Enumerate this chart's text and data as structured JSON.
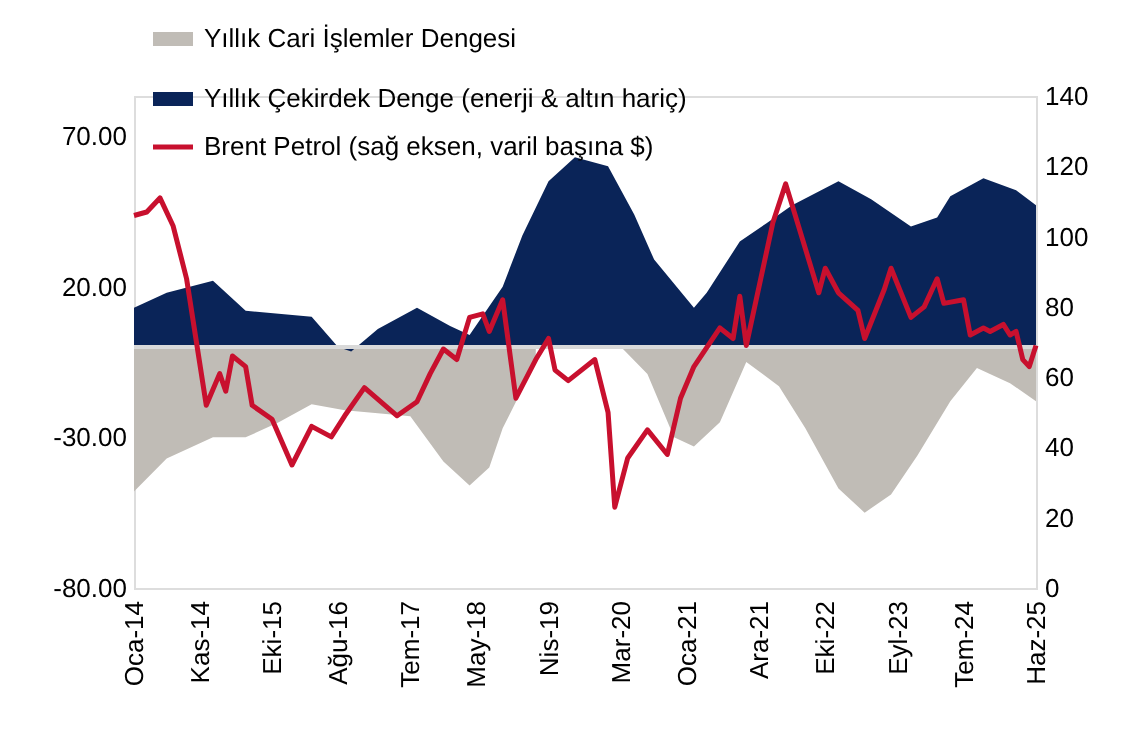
{
  "chart_data": {
    "type": "area",
    "legend": "top left",
    "grid": false,
    "xlim": [
      "2014-01",
      "2025-06"
    ],
    "xticks": [
      {
        "value": "2014-01",
        "label": "Oca-14"
      },
      {
        "value": "2014-11",
        "label": "Kas-14"
      },
      {
        "value": "2015-10",
        "label": "Eki-15"
      },
      {
        "value": "2016-08",
        "label": "Ağu-16"
      },
      {
        "value": "2017-07",
        "label": "Tem-17"
      },
      {
        "value": "2018-05",
        "label": "May-18"
      },
      {
        "value": "2019-04",
        "label": "Nis-19"
      },
      {
        "value": "2020-03",
        "label": "Mar-20"
      },
      {
        "value": "2021-01",
        "label": "Oca-21"
      },
      {
        "value": "2021-12",
        "label": "Ara-21"
      },
      {
        "value": "2022-10",
        "label": "Eki-22"
      },
      {
        "value": "2023-09",
        "label": "Eyl-23"
      },
      {
        "value": "2024-07",
        "label": "Tem-24"
      },
      {
        "value": "2025-06",
        "label": "Haz-25"
      }
    ],
    "ylim": [
      -80,
      83.3
    ],
    "yticks": [
      {
        "value": -80,
        "label": "-80.00"
      },
      {
        "value": -30,
        "label": "-30.00"
      },
      {
        "value": 20,
        "label": "20.00"
      },
      {
        "value": 70,
        "label": "70.00"
      }
    ],
    "y2lim": [
      0,
      140
    ],
    "y2ticks": [
      0,
      20,
      40,
      60,
      80,
      100,
      120,
      140
    ],
    "ref_lines": [
      {
        "axis": "y",
        "value": 0,
        "color": "#d9d9d9"
      }
    ],
    "series": [
      {
        "name": "Yıllık Cari İşlemler Dengesi",
        "color": "#c0bcb6",
        "x": [
          "2014-01",
          "2014-06",
          "2015-01",
          "2015-06",
          "2015-11",
          "2016-04",
          "2016-09",
          "2017-02",
          "2017-07",
          "2017-12",
          "2018-04",
          "2018-07",
          "2018-09",
          "2019-02",
          "2019-06",
          "2019-11",
          "2020-03",
          "2020-07",
          "2020-11",
          "2021-02",
          "2021-06",
          "2021-10",
          "2022-03",
          "2022-07",
          "2022-12",
          "2023-04",
          "2023-08",
          "2023-12",
          "2024-05",
          "2024-09",
          "2025-02",
          "2025-06"
        ],
        "values": [
          -48,
          -37,
          -30,
          -30,
          -25,
          -19,
          -21,
          -22,
          -23,
          -38,
          -46,
          -40,
          -27,
          -5,
          null,
          null,
          0,
          -9,
          -30,
          -33,
          -25,
          -5,
          -13,
          -27,
          -47,
          -55,
          -49,
          -36,
          -18,
          -7,
          -12,
          -18
        ]
      },
      {
        "name": "Yıllık Çekirdek Denge (enerji & altın hariç)",
        "color": "#0a2458",
        "x": [
          "2014-01",
          "2014-06",
          "2015-01",
          "2015-06",
          "2016-04",
          "2016-08",
          "2016-10",
          "2017-02",
          "2017-08",
          "2018-01",
          "2018-04",
          "2018-09",
          "2018-12",
          "2019-04",
          "2019-08",
          "2020-01",
          "2020-05",
          "2020-08",
          "2021-02",
          "2021-04",
          "2021-09",
          "2022-01",
          "2022-05",
          "2022-12",
          "2023-05",
          "2023-11",
          "2024-03",
          "2024-05",
          "2024-10",
          "2025-03",
          "2025-06"
        ],
        "values": [
          13,
          18,
          22,
          12,
          10,
          0,
          -1.5,
          6,
          13,
          7,
          4,
          20,
          37,
          55,
          63,
          60,
          44,
          29,
          13,
          18,
          35,
          41,
          47,
          55,
          49,
          40,
          43,
          50,
          56,
          52,
          47
        ]
      },
      {
        "name": "Brent Petrol (sağ eksen, varil başına $)",
        "type": "line",
        "line_style": "solid",
        "axis": "y2",
        "color": "#c8102e",
        "x": [
          "2014-01",
          "2014-03",
          "2014-05",
          "2014-07",
          "2014-09",
          "2014-12",
          "2015-02",
          "2015-03",
          "2015-04",
          "2015-06",
          "2015-07",
          "2015-10",
          "2016-01",
          "2016-04",
          "2016-07",
          "2016-09",
          "2016-12",
          "2017-05",
          "2017-08",
          "2017-10",
          "2017-12",
          "2018-02",
          "2018-04",
          "2018-06",
          "2018-07",
          "2018-09",
          "2018-11",
          "2019-02",
          "2019-04",
          "2019-05",
          "2019-07",
          "2019-11",
          "2020-01",
          "2020-02",
          "2020-04",
          "2020-07",
          "2020-10",
          "2020-12",
          "2021-02",
          "2021-06",
          "2021-08",
          "2021-09",
          "2021-10",
          "2022-02",
          "2022-04",
          "2022-09",
          "2022-10",
          "2022-12",
          "2023-03",
          "2023-04",
          "2023-07",
          "2023-08",
          "2023-11",
          "2024-01",
          "2024-03",
          "2024-04",
          "2024-07",
          "2024-08",
          "2024-10",
          "2024-11",
          "2025-01",
          "2025-02",
          "2025-03",
          "2025-04",
          "2025-05",
          "2025-06"
        ],
        "values": [
          106,
          107,
          111,
          103,
          88,
          52,
          61,
          56,
          66,
          63,
          52,
          48,
          35,
          46,
          43,
          49,
          57,
          49,
          53,
          61,
          68,
          65,
          77,
          78,
          73,
          82,
          54,
          65,
          71,
          62,
          59,
          65,
          50,
          23,
          37,
          45,
          38,
          54,
          63,
          74,
          71,
          83,
          69,
          104,
          115,
          84,
          91,
          84,
          79,
          71,
          85,
          91,
          77,
          80,
          88,
          81,
          82,
          72,
          74,
          73,
          75,
          72,
          73,
          65,
          63,
          69
        ]
      }
    ]
  }
}
